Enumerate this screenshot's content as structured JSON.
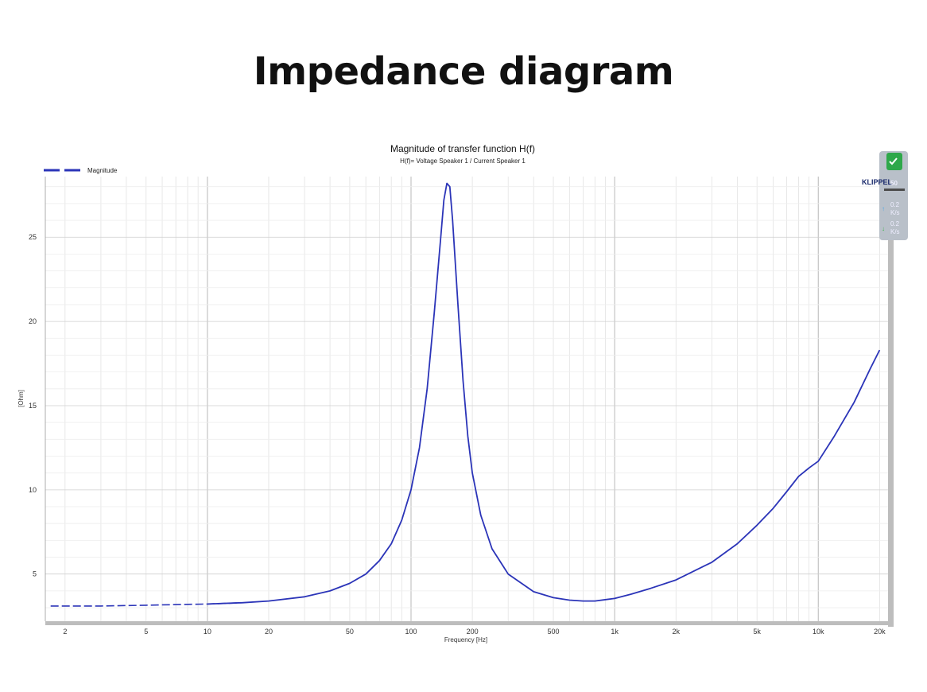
{
  "page": {
    "title": "Impedance diagram"
  },
  "chart_data": {
    "type": "line",
    "title": "Magnitude of transfer function H(f)",
    "subtitle": "H(f)= Voltage Speaker 1 / Current Speaker 1",
    "xlabel": "Frequency [Hz]",
    "ylabel": "[Ohm]",
    "xscale": "log",
    "xlim": [
      1.6,
      22000
    ],
    "ylim": [
      2.2,
      28.6
    ],
    "grid": true,
    "legend_position": "top-left",
    "x_ticks": [
      {
        "v": 2,
        "label": "2"
      },
      {
        "v": 5,
        "label": "5"
      },
      {
        "v": 10,
        "label": "10"
      },
      {
        "v": 20,
        "label": "20"
      },
      {
        "v": 50,
        "label": "50"
      },
      {
        "v": 100,
        "label": "100"
      },
      {
        "v": 200,
        "label": "200"
      },
      {
        "v": 500,
        "label": "500"
      },
      {
        "v": 1000,
        "label": "1k"
      },
      {
        "v": 2000,
        "label": "2k"
      },
      {
        "v": 5000,
        "label": "5k"
      },
      {
        "v": 10000,
        "label": "10k"
      },
      {
        "v": 20000,
        "label": "20k"
      }
    ],
    "y_ticks": [
      {
        "v": 5,
        "label": "5"
      },
      {
        "v": 10,
        "label": "10"
      },
      {
        "v": 15,
        "label": "15"
      },
      {
        "v": 20,
        "label": "20"
      },
      {
        "v": 25,
        "label": "25"
      }
    ],
    "series": [
      {
        "name": "Magnitude",
        "color": "#2b34b8",
        "dashed_below_x": 11,
        "x": [
          1.7,
          2,
          3,
          5,
          8,
          10,
          15,
          20,
          30,
          40,
          50,
          60,
          70,
          80,
          90,
          100,
          110,
          120,
          130,
          140,
          145,
          150,
          155,
          160,
          170,
          180,
          190,
          200,
          220,
          250,
          300,
          400,
          500,
          600,
          700,
          800,
          1000,
          1200,
          1500,
          2000,
          3000,
          4000,
          5000,
          6000,
          7000,
          8000,
          9000,
          10000,
          12000,
          15000,
          18000,
          20000
        ],
        "y": [
          3.1,
          3.1,
          3.1,
          3.15,
          3.2,
          3.22,
          3.3,
          3.4,
          3.65,
          4.0,
          4.45,
          5.0,
          5.8,
          6.8,
          8.2,
          10.0,
          12.5,
          16.0,
          20.5,
          25.0,
          27.2,
          28.2,
          28.0,
          26.0,
          21.0,
          16.5,
          13.2,
          11.0,
          8.5,
          6.5,
          5.0,
          3.95,
          3.6,
          3.45,
          3.4,
          3.4,
          3.55,
          3.8,
          4.15,
          4.65,
          5.7,
          6.8,
          7.9,
          8.9,
          9.9,
          10.8,
          11.3,
          11.7,
          13.2,
          15.2,
          17.2,
          18.3
        ]
      }
    ]
  },
  "badge": {
    "text": "KLIPPEL",
    "overlay_number": "50",
    "rows": [
      {
        "value": "0.2",
        "unit": "K/s"
      },
      {
        "value": "0.2",
        "unit": "K/s"
      }
    ],
    "color": "#b9c0c9"
  }
}
